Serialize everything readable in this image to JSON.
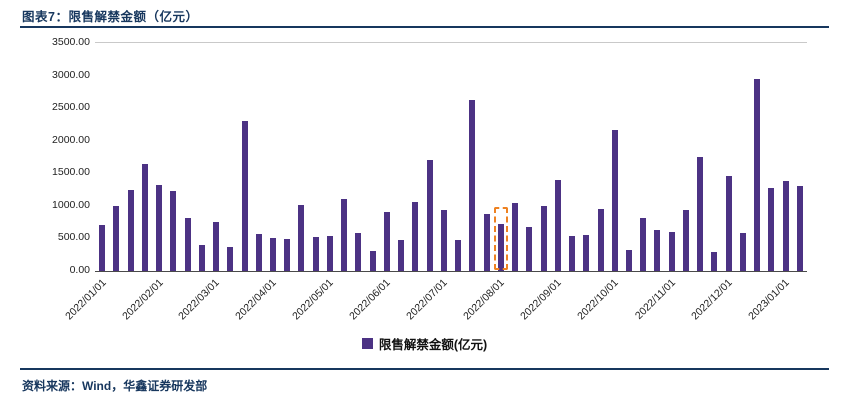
{
  "header": {
    "title": "图表7：限售解禁金额（亿元）"
  },
  "footer": {
    "source": "资料来源：Wind，华鑫证券研发部"
  },
  "colors": {
    "navy": "#17375E",
    "bar": "#4C3284",
    "highlight": "#EE8222"
  },
  "legend": {
    "label": "限售解禁金额(亿元)"
  },
  "chart_data": {
    "type": "bar",
    "title": "限售解禁金额（亿元）",
    "ylabel": "",
    "xlabel": "",
    "ylim": [
      0,
      3500
    ],
    "y_ticks": [
      "3500.00",
      "3000.00",
      "2500.00",
      "2000.00",
      "1500.00",
      "1000.00",
      "500.00",
      "0.00"
    ],
    "grid": false,
    "legend_position": "bottom",
    "values": [
      700,
      1000,
      1250,
      1650,
      1320,
      1230,
      810,
      400,
      760,
      370,
      2300,
      570,
      500,
      490,
      1020,
      520,
      540,
      1100,
      590,
      310,
      900,
      480,
      1060,
      1700,
      930,
      480,
      2620,
      870,
      720,
      1050,
      680,
      1000,
      1400,
      540,
      550,
      960,
      2170,
      320,
      810,
      630,
      600,
      940,
      1750,
      290,
      1460,
      580,
      2950,
      1280,
      1380,
      1300
    ],
    "x_ticks": [
      {
        "label": "2022/01/01",
        "index": 0
      },
      {
        "label": "2022/02/01",
        "index": 4
      },
      {
        "label": "2022/03/01",
        "index": 8
      },
      {
        "label": "2022/04/01",
        "index": 12
      },
      {
        "label": "2022/05/01",
        "index": 16
      },
      {
        "label": "2022/06/01",
        "index": 20
      },
      {
        "label": "2022/07/01",
        "index": 24
      },
      {
        "label": "2022/08/01",
        "index": 28
      },
      {
        "label": "2022/09/01",
        "index": 32
      },
      {
        "label": "2022/10/01",
        "index": 36
      },
      {
        "label": "2022/11/01",
        "index": 40
      },
      {
        "label": "2022/12/01",
        "index": 44
      },
      {
        "label": "2023/01/01",
        "index": 48
      }
    ],
    "highlight": {
      "index": 28
    }
  }
}
